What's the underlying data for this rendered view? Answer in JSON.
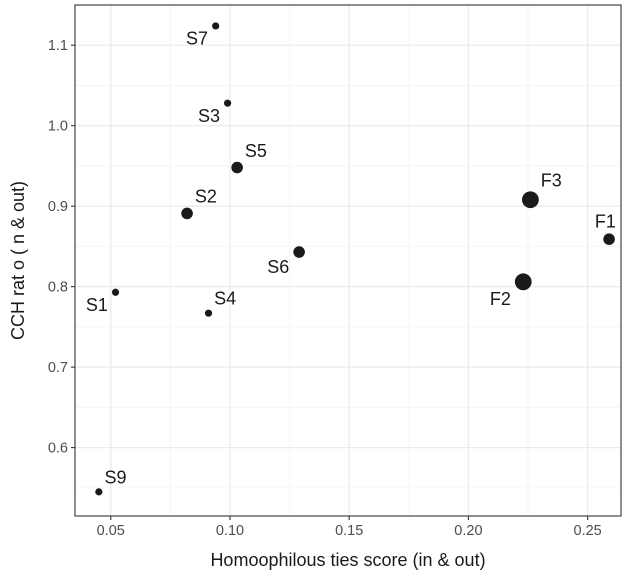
{
  "chart_data": {
    "type": "scatter",
    "title": "",
    "xlabel": "Homoophilous ties score (in & out)",
    "ylabel": "CCH rat o ( n & out)",
    "xlim": [
      0.035,
      0.264
    ],
    "ylim": [
      0.515,
      1.15
    ],
    "x_ticks": [
      0.05,
      0.1,
      0.15,
      0.2,
      0.25
    ],
    "x_tick_labels": [
      "0.05",
      "0.10",
      "0.15",
      "0.20",
      "0.25"
    ],
    "y_ticks": [
      0.6,
      0.7,
      0.8,
      0.9,
      1.0,
      1.1
    ],
    "y_tick_labels": [
      "0.6",
      "0.7",
      "0.8",
      "0.9",
      "1.0",
      "1.1"
    ],
    "grid": true,
    "legend": "none",
    "colors": {
      "point": "#1a1a1a",
      "panel_border": "#333333",
      "grid_major": "#ebebeb",
      "grid_minor": "#f5f5f5"
    },
    "points": [
      {
        "label": "S7",
        "x": 0.094,
        "y": 1.124,
        "size": "small",
        "label_pos": "left-below"
      },
      {
        "label": "S3",
        "x": 0.099,
        "y": 1.028,
        "size": "small",
        "label_pos": "left-below"
      },
      {
        "label": "S5",
        "x": 0.103,
        "y": 0.948,
        "size": "medium",
        "label_pos": "right-above"
      },
      {
        "label": "S2",
        "x": 0.082,
        "y": 0.891,
        "size": "medium",
        "label_pos": "right-above"
      },
      {
        "label": "S6",
        "x": 0.129,
        "y": 0.843,
        "size": "medium",
        "label_pos": "left-below"
      },
      {
        "label": "S1",
        "x": 0.052,
        "y": 0.793,
        "size": "small",
        "label_pos": "left-below"
      },
      {
        "label": "S4",
        "x": 0.091,
        "y": 0.767,
        "size": "small",
        "label_pos": "right-above"
      },
      {
        "label": "S9",
        "x": 0.045,
        "y": 0.545,
        "size": "small",
        "label_pos": "right-above"
      },
      {
        "label": "F3",
        "x": 0.226,
        "y": 0.908,
        "size": "large",
        "label_pos": "right-above"
      },
      {
        "label": "F1",
        "x": 0.259,
        "y": 0.859,
        "size": "medium",
        "label_pos": "left-above"
      },
      {
        "label": "F2",
        "x": 0.223,
        "y": 0.806,
        "size": "large",
        "label_pos": "left-below"
      }
    ]
  }
}
